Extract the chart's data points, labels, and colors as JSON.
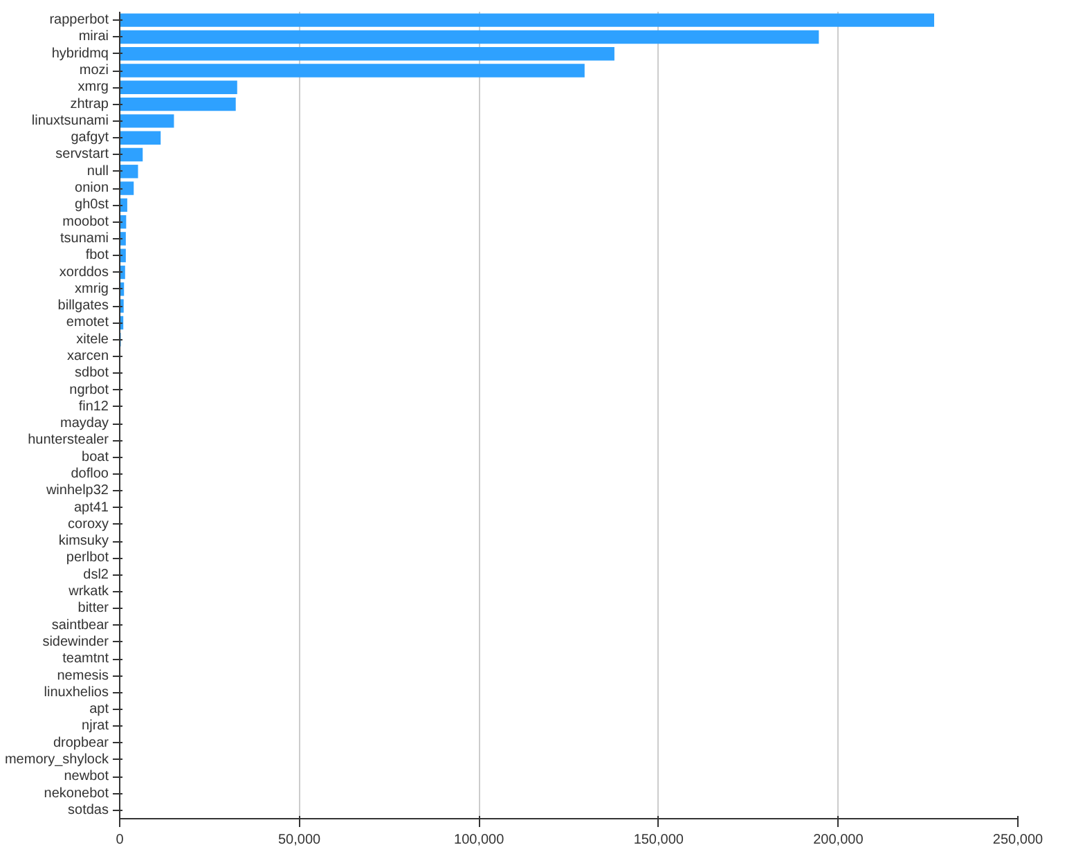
{
  "chart_data": {
    "type": "bar",
    "orientation": "horizontal",
    "categories": [
      "rapperbot",
      "mirai",
      "hybridmq",
      "mozi",
      "xmrg",
      "zhtrap",
      "linuxtsunami",
      "gafgyt",
      "servstart",
      "null",
      "onion",
      "gh0st",
      "moobot",
      "tsunami",
      "fbot",
      "xorddos",
      "xmrig",
      "billgates",
      "emotet",
      "xitele",
      "xarcen",
      "sdbot",
      "ngrbot",
      "fin12",
      "mayday",
      "hunterstealer",
      "boat",
      "dofloo",
      "winhelp32",
      "apt41",
      "coroxy",
      "kimsuky",
      "perlbot",
      "dsl2",
      "wrkatk",
      "bitter",
      "saintbear",
      "sidewinder",
      "teamtnt",
      "nemesis",
      "linuxhelios",
      "apt",
      "njrat",
      "dropbear",
      "memory_shylock",
      "newbot",
      "nekonebot",
      "sotdas"
    ],
    "values": [
      226700,
      194600,
      137700,
      129400,
      32700,
      32300,
      15100,
      11400,
      6400,
      5100,
      3900,
      2100,
      1800,
      1700,
      1700,
      1500,
      1200,
      1100,
      1000,
      300,
      0,
      0,
      0,
      0,
      0,
      0,
      0,
      0,
      0,
      0,
      0,
      0,
      0,
      0,
      0,
      0,
      0,
      0,
      0,
      0,
      0,
      0,
      0,
      0,
      0,
      0,
      0,
      0
    ],
    "color": "#2ea1ff",
    "xlim": [
      0,
      250000
    ],
    "xticks": [
      {
        "value": 0,
        "label": "0"
      },
      {
        "value": 50000,
        "label": "50,000"
      },
      {
        "value": 100000,
        "label": "100,000"
      },
      {
        "value": 150000,
        "label": "150,000"
      },
      {
        "value": 200000,
        "label": "200,000"
      },
      {
        "value": 250000,
        "label": "250,000"
      }
    ],
    "grid": "x"
  }
}
